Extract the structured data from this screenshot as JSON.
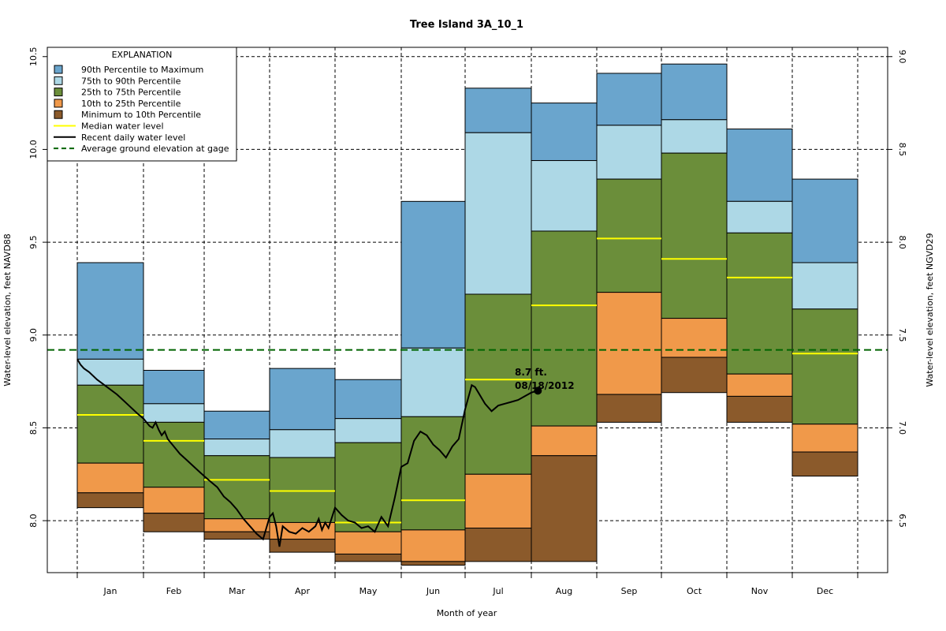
{
  "chart_data": {
    "type": "bar",
    "title": "Tree Island 3A_10_1",
    "xlabel": "Month of year",
    "ylabel": "Water-level elevation, feet NAVD88",
    "ylabel_right": "Water-level elevation, feet NGVD29",
    "ylim": [
      7.72,
      10.55
    ],
    "yticks": [
      8.0,
      8.5,
      9.0,
      9.5,
      10.0,
      10.5
    ],
    "yticks_right": [
      6.5,
      7.0,
      7.5,
      8.0,
      8.5,
      9.0
    ],
    "right_axis_offset": -1.5,
    "grid": true,
    "months": [
      "Jan",
      "Feb",
      "Mar",
      "Apr",
      "May",
      "Jun",
      "Jul",
      "Aug",
      "Sep",
      "Oct",
      "Nov",
      "Dec"
    ],
    "series": [
      {
        "name": "90th Percentile to Maximum",
        "color": "#6aa5cd"
      },
      {
        "name": "75th to 90th Percentile",
        "color": "#add8e6"
      },
      {
        "name": "25th to 75th Percentile",
        "color": "#6b8e3a"
      },
      {
        "name": "10th to 25th Percentile",
        "color": "#f0994a"
      },
      {
        "name": "Minimum to 10th Percentile",
        "color": "#8b5a2b"
      }
    ],
    "percentiles": [
      {
        "min": 8.07,
        "p10": 8.15,
        "p25": 8.31,
        "median": 8.57,
        "p75": 8.73,
        "p90": 8.87,
        "max": 9.39
      },
      {
        "min": 7.94,
        "p10": 8.04,
        "p25": 8.18,
        "median": 8.43,
        "p75": 8.53,
        "p90": 8.63,
        "max": 8.81
      },
      {
        "min": 7.9,
        "p10": 7.94,
        "p25": 8.01,
        "median": 8.22,
        "p75": 8.35,
        "p90": 8.44,
        "max": 8.59
      },
      {
        "min": 7.83,
        "p10": 7.9,
        "p25": 7.99,
        "median": 8.16,
        "p75": 8.34,
        "p90": 8.49,
        "max": 8.82
      },
      {
        "min": 7.78,
        "p10": 7.82,
        "p25": 7.94,
        "median": 7.99,
        "p75": 8.42,
        "p90": 8.55,
        "max": 8.76
      },
      {
        "min": 7.76,
        "p10": 7.78,
        "p25": 7.95,
        "median": 8.11,
        "p75": 8.56,
        "p90": 8.93,
        "max": 9.72
      },
      {
        "min": 7.78,
        "p10": 7.96,
        "p25": 8.25,
        "median": 8.76,
        "p75": 9.22,
        "p90": 10.09,
        "max": 10.33
      },
      {
        "min": 7.78,
        "p10": 8.35,
        "p25": 8.51,
        "median": 9.16,
        "p75": 9.56,
        "p90": 9.94,
        "max": 10.25
      },
      {
        "min": 8.53,
        "p10": 8.68,
        "p25": 9.23,
        "median": 9.52,
        "p75": 9.84,
        "p90": 10.13,
        "max": 10.41
      },
      {
        "min": 8.69,
        "p10": 8.88,
        "p25": 9.09,
        "median": 9.41,
        "p75": 9.98,
        "p90": 10.16,
        "max": 10.46
      },
      {
        "min": 8.53,
        "p10": 8.67,
        "p25": 8.79,
        "median": 9.31,
        "p75": 9.55,
        "p90": 9.72,
        "max": 10.11
      },
      {
        "min": 8.24,
        "p10": 8.37,
        "p25": 8.52,
        "median": 8.9,
        "p75": 9.14,
        "p90": 9.39,
        "max": 9.84
      }
    ],
    "median_series": {
      "name": "Median water level",
      "color": "#ffff00"
    },
    "recent_series": {
      "name": "Recent daily water level",
      "color": "#000000",
      "points": [
        [
          1.0,
          8.87
        ],
        [
          1.05,
          8.84
        ],
        [
          1.1,
          8.82
        ],
        [
          1.18,
          8.8
        ],
        [
          1.3,
          8.76
        ],
        [
          1.45,
          8.72
        ],
        [
          1.6,
          8.68
        ],
        [
          1.75,
          8.63
        ],
        [
          1.9,
          8.58
        ],
        [
          2.0,
          8.55
        ],
        [
          2.05,
          8.53
        ],
        [
          2.1,
          8.51
        ],
        [
          2.15,
          8.5
        ],
        [
          2.2,
          8.53
        ],
        [
          2.25,
          8.49
        ],
        [
          2.3,
          8.46
        ],
        [
          2.35,
          8.48
        ],
        [
          2.4,
          8.44
        ],
        [
          2.5,
          8.4
        ],
        [
          2.6,
          8.36
        ],
        [
          2.7,
          8.33
        ],
        [
          2.8,
          8.3
        ],
        [
          2.9,
          8.27
        ],
        [
          3.0,
          8.24
        ],
        [
          3.1,
          8.21
        ],
        [
          3.2,
          8.18
        ],
        [
          3.3,
          8.13
        ],
        [
          3.4,
          8.1
        ],
        [
          3.5,
          8.06
        ],
        [
          3.6,
          8.01
        ],
        [
          3.7,
          7.97
        ],
        [
          3.8,
          7.93
        ],
        [
          3.9,
          7.9
        ],
        [
          4.0,
          8.02
        ],
        [
          4.05,
          8.04
        ],
        [
          4.1,
          7.97
        ],
        [
          4.15,
          7.86
        ],
        [
          4.2,
          7.97
        ],
        [
          4.3,
          7.94
        ],
        [
          4.4,
          7.93
        ],
        [
          4.5,
          7.96
        ],
        [
          4.6,
          7.94
        ],
        [
          4.7,
          7.97
        ],
        [
          4.75,
          8.01
        ],
        [
          4.8,
          7.95
        ],
        [
          4.85,
          7.99
        ],
        [
          4.9,
          7.96
        ],
        [
          5.0,
          8.07
        ],
        [
          5.1,
          8.03
        ],
        [
          5.2,
          8.0
        ],
        [
          5.3,
          7.99
        ],
        [
          5.4,
          7.96
        ],
        [
          5.5,
          7.97
        ],
        [
          5.6,
          7.94
        ],
        [
          5.7,
          8.02
        ],
        [
          5.8,
          7.97
        ],
        [
          5.9,
          8.12
        ],
        [
          6.0,
          8.29
        ],
        [
          6.1,
          8.31
        ],
        [
          6.2,
          8.43
        ],
        [
          6.3,
          8.48
        ],
        [
          6.4,
          8.46
        ],
        [
          6.5,
          8.41
        ],
        [
          6.6,
          8.38
        ],
        [
          6.7,
          8.34
        ],
        [
          6.8,
          8.4
        ],
        [
          6.9,
          8.44
        ],
        [
          7.0,
          8.6
        ],
        [
          7.1,
          8.73
        ],
        [
          7.15,
          8.72
        ],
        [
          7.2,
          8.69
        ],
        [
          7.3,
          8.63
        ],
        [
          7.4,
          8.59
        ],
        [
          7.5,
          8.62
        ],
        [
          7.6,
          8.63
        ],
        [
          7.7,
          8.64
        ],
        [
          7.8,
          8.65
        ],
        [
          7.9,
          8.67
        ],
        [
          8.0,
          8.69
        ],
        [
          8.1,
          8.7
        ]
      ]
    },
    "ground_elevation": {
      "name": "Average ground elevation at gage",
      "value": 8.92,
      "color": "#006400"
    },
    "annotation": {
      "value_label": "8.7 ft.",
      "date_label": "08/18/2012",
      "x": 8.1,
      "y": 8.7
    },
    "legend": {
      "title": "EXPLANATION",
      "position": "top-left"
    }
  }
}
